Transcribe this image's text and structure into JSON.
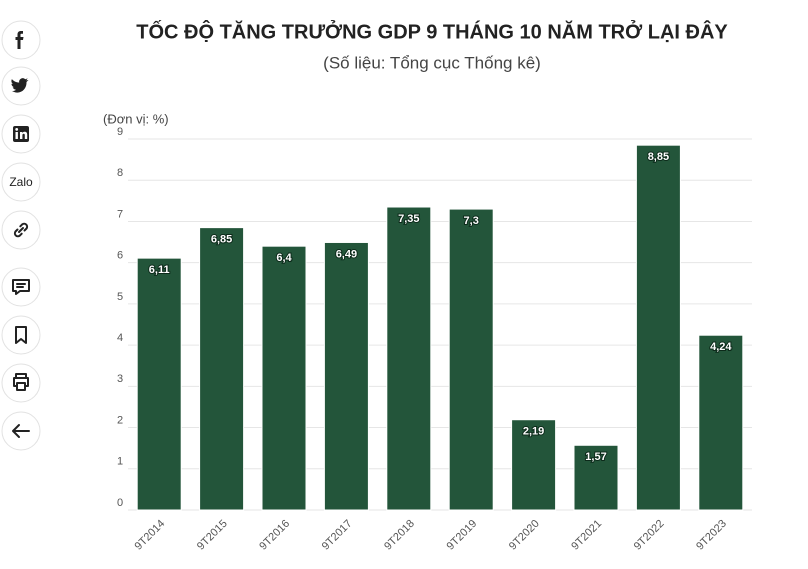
{
  "share": {
    "zalo": "Zalo"
  },
  "chart_data": {
    "type": "bar",
    "title": "TỐC ĐỘ TĂNG TRƯỞNG GDP 9 THÁNG 10 NĂM TRỞ LẠI ĐÂY",
    "subtitle": "(Số liệu: Tổng cục Thống kê)",
    "unit_label": "(Đơn vị: %)",
    "categories": [
      "9T2014",
      "9T2015",
      "9T2016",
      "9T2017",
      "9T2018",
      "9T2019",
      "9T2020",
      "9T2021",
      "9T2022",
      "9T2023"
    ],
    "values": [
      6.11,
      6.85,
      6.4,
      6.49,
      7.35,
      7.3,
      2.19,
      1.57,
      8.85,
      4.24
    ],
    "value_labels": [
      "6,11",
      "6,85",
      "6,4",
      "6,49",
      "7,35",
      "7,3",
      "2,19",
      "1,57",
      "8,85",
      "4,24"
    ],
    "color": "#23553a",
    "ylim": [
      0,
      9
    ],
    "yticks": [
      0,
      1,
      2,
      3,
      4,
      5,
      6,
      7,
      8,
      9
    ],
    "grid": true
  }
}
